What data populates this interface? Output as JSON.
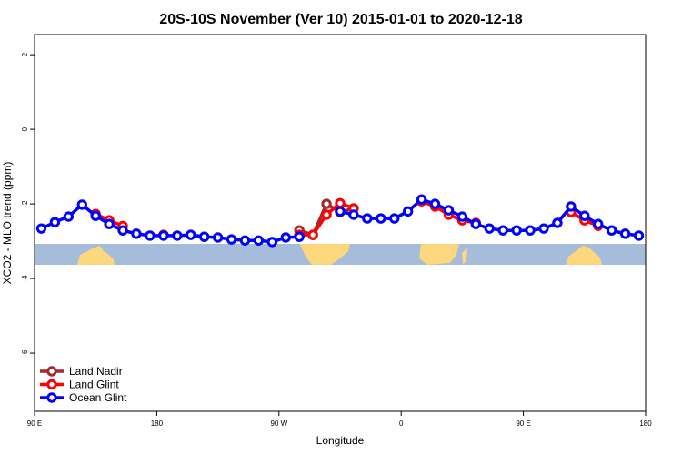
{
  "chart_data": {
    "type": "line",
    "title": "20S-10S November (Ver 10)   2015-01-01 to 2020-12-18",
    "x_label": "Longitude",
    "y_label": "XCO2 - MLO trend (ppm)",
    "x": [
      95,
      105,
      115,
      125,
      135,
      145,
      155,
      165,
      175,
      185,
      195,
      205,
      215,
      225,
      235,
      245,
      255,
      265,
      275,
      285,
      295,
      305,
      315,
      325,
      335,
      345,
      355,
      365,
      375,
      385,
      395,
      405,
      415,
      425,
      435,
      445,
      455,
      465,
      475,
      485,
      495,
      505,
      515,
      525,
      535
    ],
    "series": [
      {
        "name": "Land Nadir",
        "color": "#a02c2c",
        "values": [
          null,
          null,
          null,
          null,
          null,
          null,
          null,
          null,
          null,
          null,
          null,
          null,
          null,
          null,
          null,
          null,
          null,
          null,
          null,
          -2.71,
          -2.83,
          -2.0,
          -2.22,
          -2.12,
          null,
          null,
          null,
          null,
          null,
          null,
          null,
          null,
          null,
          null,
          null,
          null,
          null,
          null,
          null,
          null,
          null,
          null,
          null,
          null,
          null
        ]
      },
      {
        "name": "Land Glint",
        "color": "#ff0000",
        "values": [
          null,
          null,
          null,
          null,
          -2.27,
          -2.44,
          -2.59,
          null,
          null,
          -2.83,
          null,
          null,
          null,
          null,
          null,
          null,
          null,
          null,
          null,
          -2.83,
          -2.83,
          -2.29,
          -1.98,
          -2.12,
          null,
          null,
          null,
          null,
          -1.93,
          -2.07,
          -2.29,
          -2.44,
          -2.51,
          null,
          null,
          null,
          null,
          null,
          null,
          -2.22,
          -2.44,
          -2.59,
          null,
          null,
          null
        ]
      },
      {
        "name": "Ocean Glint",
        "color": "#0000ff",
        "values": [
          -2.66,
          -2.49,
          -2.34,
          -2.02,
          -2.32,
          -2.54,
          -2.71,
          -2.8,
          -2.85,
          -2.85,
          -2.85,
          -2.83,
          -2.88,
          -2.9,
          -2.95,
          -2.98,
          -2.98,
          -3.02,
          -2.9,
          -2.88,
          null,
          null,
          -2.2,
          -2.29,
          -2.39,
          -2.39,
          -2.39,
          -2.2,
          -1.88,
          -2.0,
          -2.17,
          -2.34,
          -2.54,
          -2.66,
          -2.71,
          -2.71,
          -2.71,
          -2.66,
          -2.51,
          -2.07,
          -2.32,
          -2.54,
          -2.71,
          -2.8,
          -2.85
        ]
      }
    ],
    "xlim": [
      90,
      540
    ],
    "xticks": [
      {
        "value": 90,
        "label": "90 E"
      },
      {
        "value": 180,
        "label": "180"
      },
      {
        "value": 270,
        "label": "90 W"
      },
      {
        "value": 360,
        "label": "0"
      },
      {
        "value": 450,
        "label": "90 E"
      },
      {
        "value": 540,
        "label": "180"
      }
    ],
    "ylim": [
      -7.56,
      2.54
    ],
    "yticks": [
      2,
      0,
      -2,
      -4,
      -6
    ],
    "legend": "bottom-left"
  }
}
